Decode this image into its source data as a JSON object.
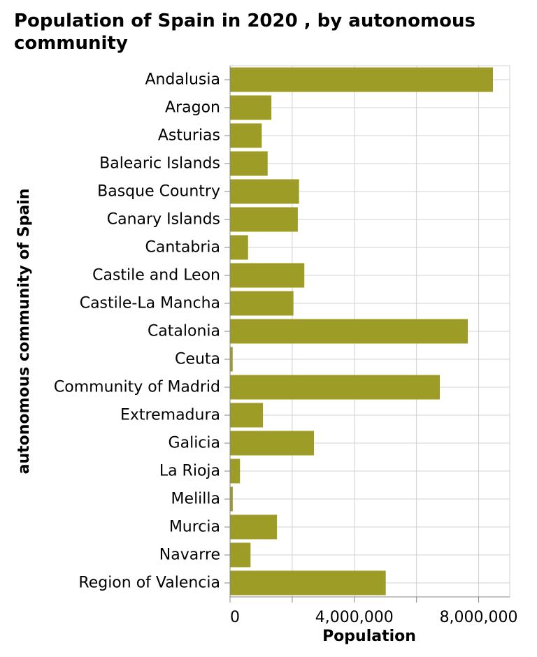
{
  "chart_data": {
    "type": "bar",
    "orientation": "horizontal",
    "title": "Population of Spain in 2020 , by autonomous community",
    "xlabel": "Population",
    "ylabel": "autonomous community of Spain",
    "categories": [
      "Andalusia",
      "Aragon",
      "Asturias",
      "Balearic Islands",
      "Basque Country",
      "Canary Islands",
      "Cantabria",
      "Castile and Leon",
      "Castile-La Mancha",
      "Catalonia",
      "Ceuta",
      "Community of Madrid",
      "Extremadura",
      "Galicia",
      "La Rioja",
      "Melilla",
      "Murcia",
      "Navarre",
      "Region of Valencia"
    ],
    "values": [
      8460000,
      1330000,
      1020000,
      1210000,
      2220000,
      2180000,
      580000,
      2390000,
      2040000,
      7650000,
      84000,
      6750000,
      1060000,
      2700000,
      320000,
      87000,
      1510000,
      660000,
      5010000
    ],
    "xlim": [
      0,
      9000000
    ],
    "xticks": [
      0,
      4000000,
      8000000
    ],
    "xtick_labels": [
      "0",
      "4,000,000",
      "8,000,000"
    ],
    "grid": true,
    "bar_color": "#9c9c26",
    "grid_color": "#d0d0d0"
  }
}
